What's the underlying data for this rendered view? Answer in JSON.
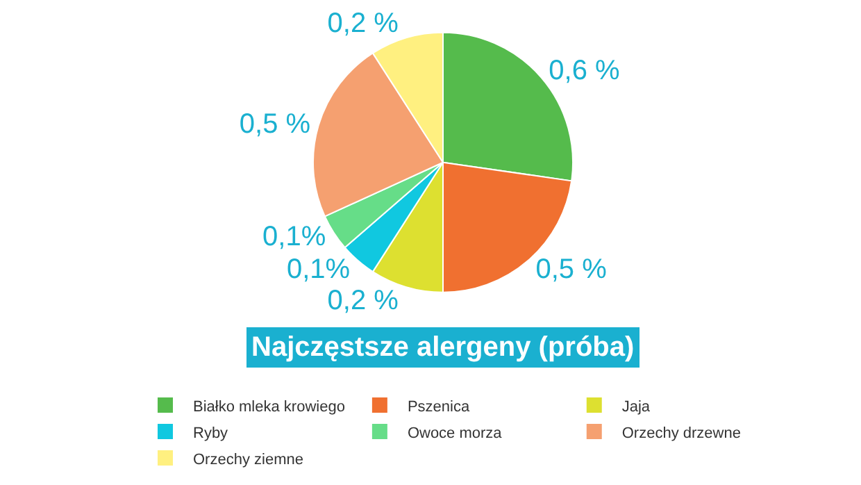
{
  "chart_data": {
    "type": "pie",
    "title": "Najczęstsze alergeny (próba)",
    "categories": [
      "Białko mleka krowiego",
      "Pszenica",
      "Jaja",
      "Ryby",
      "Owoce morza",
      "Orzechy drzewne",
      "Orzechy ziemne"
    ],
    "values": [
      0.6,
      0.5,
      0.2,
      0.1,
      0.1,
      0.5,
      0.2
    ],
    "value_labels": [
      "0,6 %",
      "0,5 %",
      "0,2 %",
      "0,1%",
      "0,1%",
      "0,5 %",
      "0,2 %"
    ],
    "colors": [
      "#55bb4c",
      "#f07030",
      "#dde030",
      "#10c8e0",
      "#66dd88",
      "#f5a070",
      "#fff080"
    ],
    "legend": "bottom"
  }
}
